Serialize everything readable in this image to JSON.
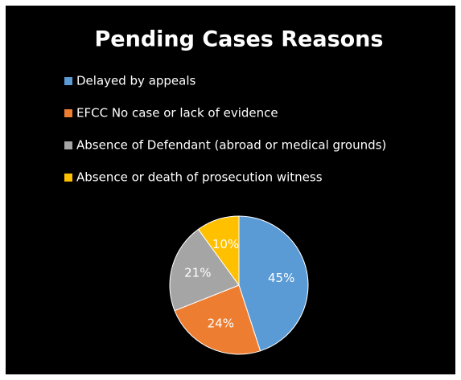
{
  "chart_data": {
    "type": "pie",
    "title": "Pending Cases Reasons",
    "categories": [
      "Delayed by appeals",
      "EFCC No case or lack of evidence",
      "Absence of Defendant (abroad or medical grounds)",
      "Absence or death of prosecution witness"
    ],
    "values": [
      45,
      24,
      21,
      10
    ],
    "value_labels": [
      "45%",
      "24%",
      "21%",
      "10%"
    ],
    "colors": [
      "#5b9bd5",
      "#ed7d31",
      "#a5a5a5",
      "#ffc000"
    ],
    "legend": "top-left"
  }
}
